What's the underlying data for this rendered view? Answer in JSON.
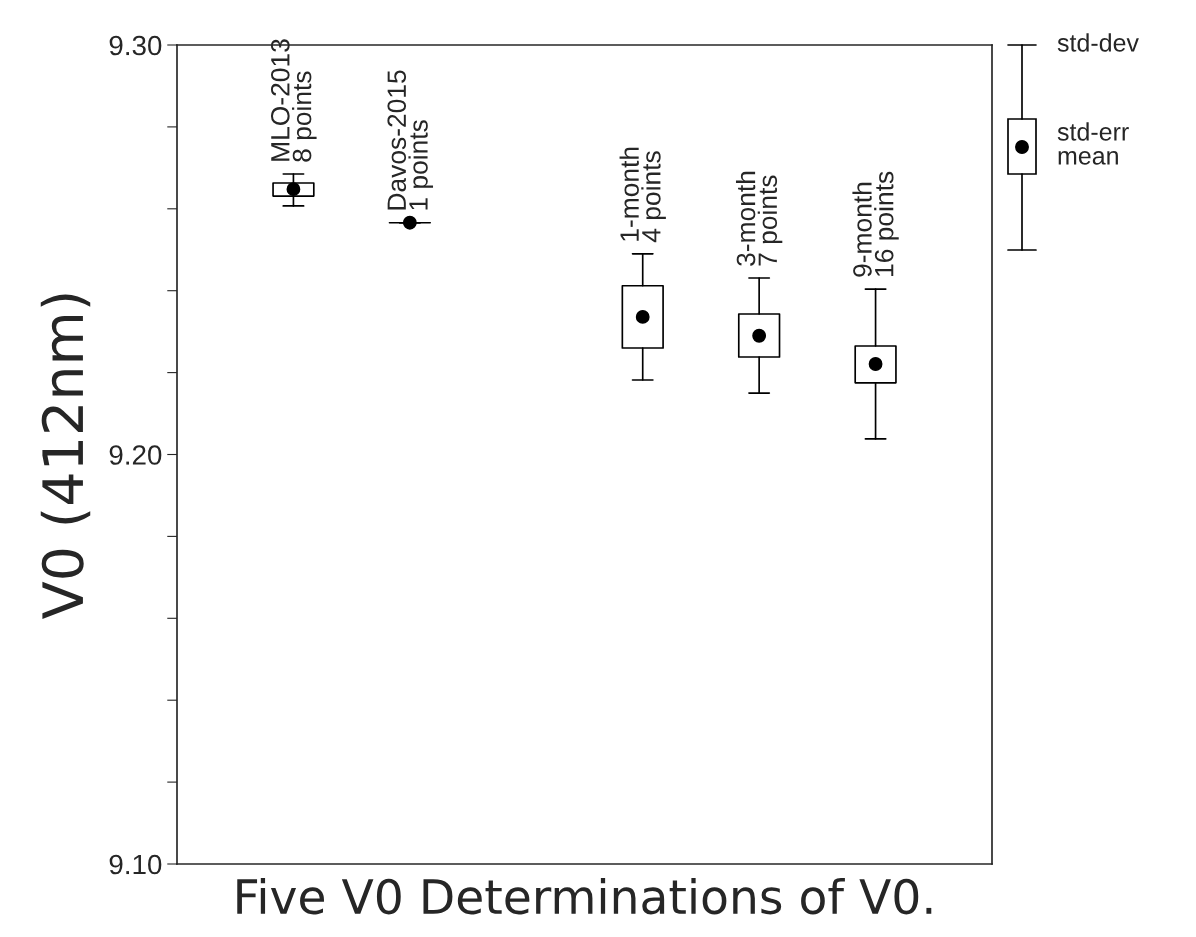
{
  "chart_data": {
    "type": "box",
    "xlabel": "Five V0 Determinations of V0.",
    "ylabel": "V0 (412nm)",
    "categories": [
      "MLO-2013\n8 points",
      "Davos-2015\n1 points",
      null,
      "1-month\n4 points",
      "3-month\n7 points",
      "9-month\n16 points"
    ],
    "boxes": [
      {
        "low": 9.2607,
        "q1": 9.2631,
        "q3": 9.2663,
        "high": 9.2685,
        "mean": 9.2648
      },
      {
        "low": 9.2566,
        "q1": 9.2566,
        "q3": 9.2566,
        "high": 9.2566,
        "mean": 9.2566
      },
      null,
      {
        "low": 9.2182,
        "q1": 9.226,
        "q3": 9.2412,
        "high": 9.249,
        "mean": 9.2336
      },
      {
        "low": 9.215,
        "q1": 9.2238,
        "q3": 9.2343,
        "high": 9.2431,
        "mean": 9.229
      },
      {
        "low": 9.2038,
        "q1": 9.2175,
        "q3": 9.2265,
        "high": 9.2404,
        "mean": 9.2221
      }
    ],
    "ylim": [
      9.1,
      9.3
    ],
    "yticks": [
      {
        "value": 9.1,
        "label": "9.10"
      },
      {
        "value": 9.12,
        "label": null
      },
      {
        "value": 9.14,
        "label": null
      },
      {
        "value": 9.16,
        "label": null
      },
      {
        "value": 9.18,
        "label": null
      },
      {
        "value": 9.2,
        "label": "9.20"
      },
      {
        "value": 9.22,
        "label": null
      },
      {
        "value": 9.24,
        "label": null
      },
      {
        "value": 9.26,
        "label": null
      },
      {
        "value": 9.28,
        "label": null
      },
      {
        "value": 9.3,
        "label": "9.30"
      }
    ],
    "tick_labels": "y",
    "grid": false,
    "annotations": [
      "std-dev",
      "std-err",
      "mean"
    ]
  }
}
